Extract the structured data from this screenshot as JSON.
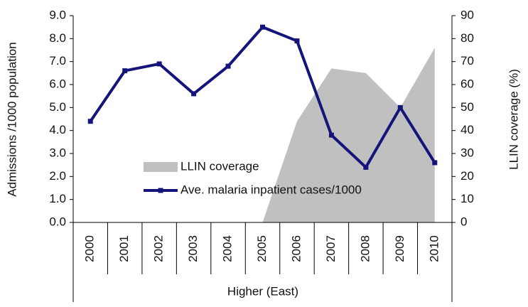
{
  "chart_data": {
    "type": "line",
    "categories": [
      "2000",
      "2001",
      "2002",
      "2003",
      "2004",
      "2005",
      "2006",
      "2007",
      "2008",
      "2009",
      "2010"
    ],
    "xlabel": "Higher (East)",
    "ylabel": "Admissions /1000 population",
    "y2label": "LLIN coverage (%)",
    "ylim": [
      0,
      9
    ],
    "yticks": [
      {
        "value": 0,
        "label": "0.0"
      },
      {
        "value": 1,
        "label": "1.0"
      },
      {
        "value": 2,
        "label": "2.0"
      },
      {
        "value": 3,
        "label": "3.0"
      },
      {
        "value": 4,
        "label": "4.0"
      },
      {
        "value": 5,
        "label": "5.0"
      },
      {
        "value": 6,
        "label": "6.0"
      },
      {
        "value": 7,
        "label": "7.0"
      },
      {
        "value": 8,
        "label": "8.0"
      },
      {
        "value": 9,
        "label": "9.0"
      }
    ],
    "y2lim": [
      0,
      90
    ],
    "y2ticks": [
      0,
      10,
      20,
      30,
      40,
      50,
      60,
      70,
      80,
      90
    ],
    "legend": "center",
    "series": [
      {
        "name": "LLIN coverage",
        "type": "area",
        "axis": "y2",
        "color": "#c0c0c0",
        "values": [
          0,
          0,
          0,
          0,
          0,
          0,
          44,
          67,
          65,
          50,
          76
        ]
      },
      {
        "name": "Ave. malaria inpatient cases/1000",
        "type": "line",
        "color": "#14147a",
        "values": [
          4.4,
          6.6,
          6.9,
          5.6,
          6.8,
          8.5,
          7.9,
          3.8,
          2.4,
          5.0,
          2.6
        ]
      }
    ]
  }
}
